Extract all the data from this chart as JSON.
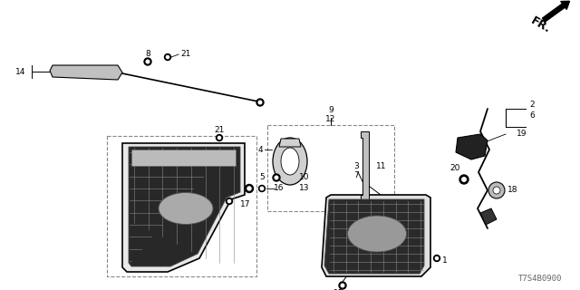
{
  "bg_color": "#ffffff",
  "diagram_id": "T7S4B0900",
  "line_color": "#000000"
}
